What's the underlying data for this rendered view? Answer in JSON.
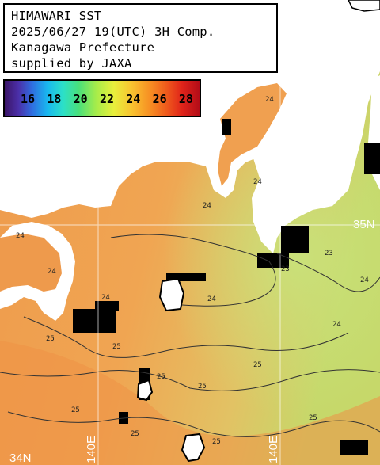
{
  "header": {
    "line1": "HIMAWARI SST",
    "line2": "2025/06/27 19(UTC) 3H Comp.",
    "line3": "Kanagawa Prefecture",
    "line4": "supplied by JAXA"
  },
  "legend": {
    "ticks": [
      "16",
      "18",
      "20",
      "22",
      "24",
      "26",
      "28"
    ]
  },
  "gridlines": {
    "lat_label": "35N",
    "lat_label_south": "34N",
    "lon_label_west": "140E",
    "lon_label_east": "140E"
  },
  "contours": [
    "24",
    "24",
    "24",
    "23",
    "23",
    "24",
    "24",
    "25",
    "25",
    "25",
    "25",
    "25",
    "24",
    "24",
    "24",
    "25",
    "25",
    "25",
    "25",
    "24"
  ],
  "colors": {
    "land": "#ffffff",
    "missing": "#000000",
    "sst_warm": "#f0a050",
    "sst_cool": "#c8e070"
  }
}
